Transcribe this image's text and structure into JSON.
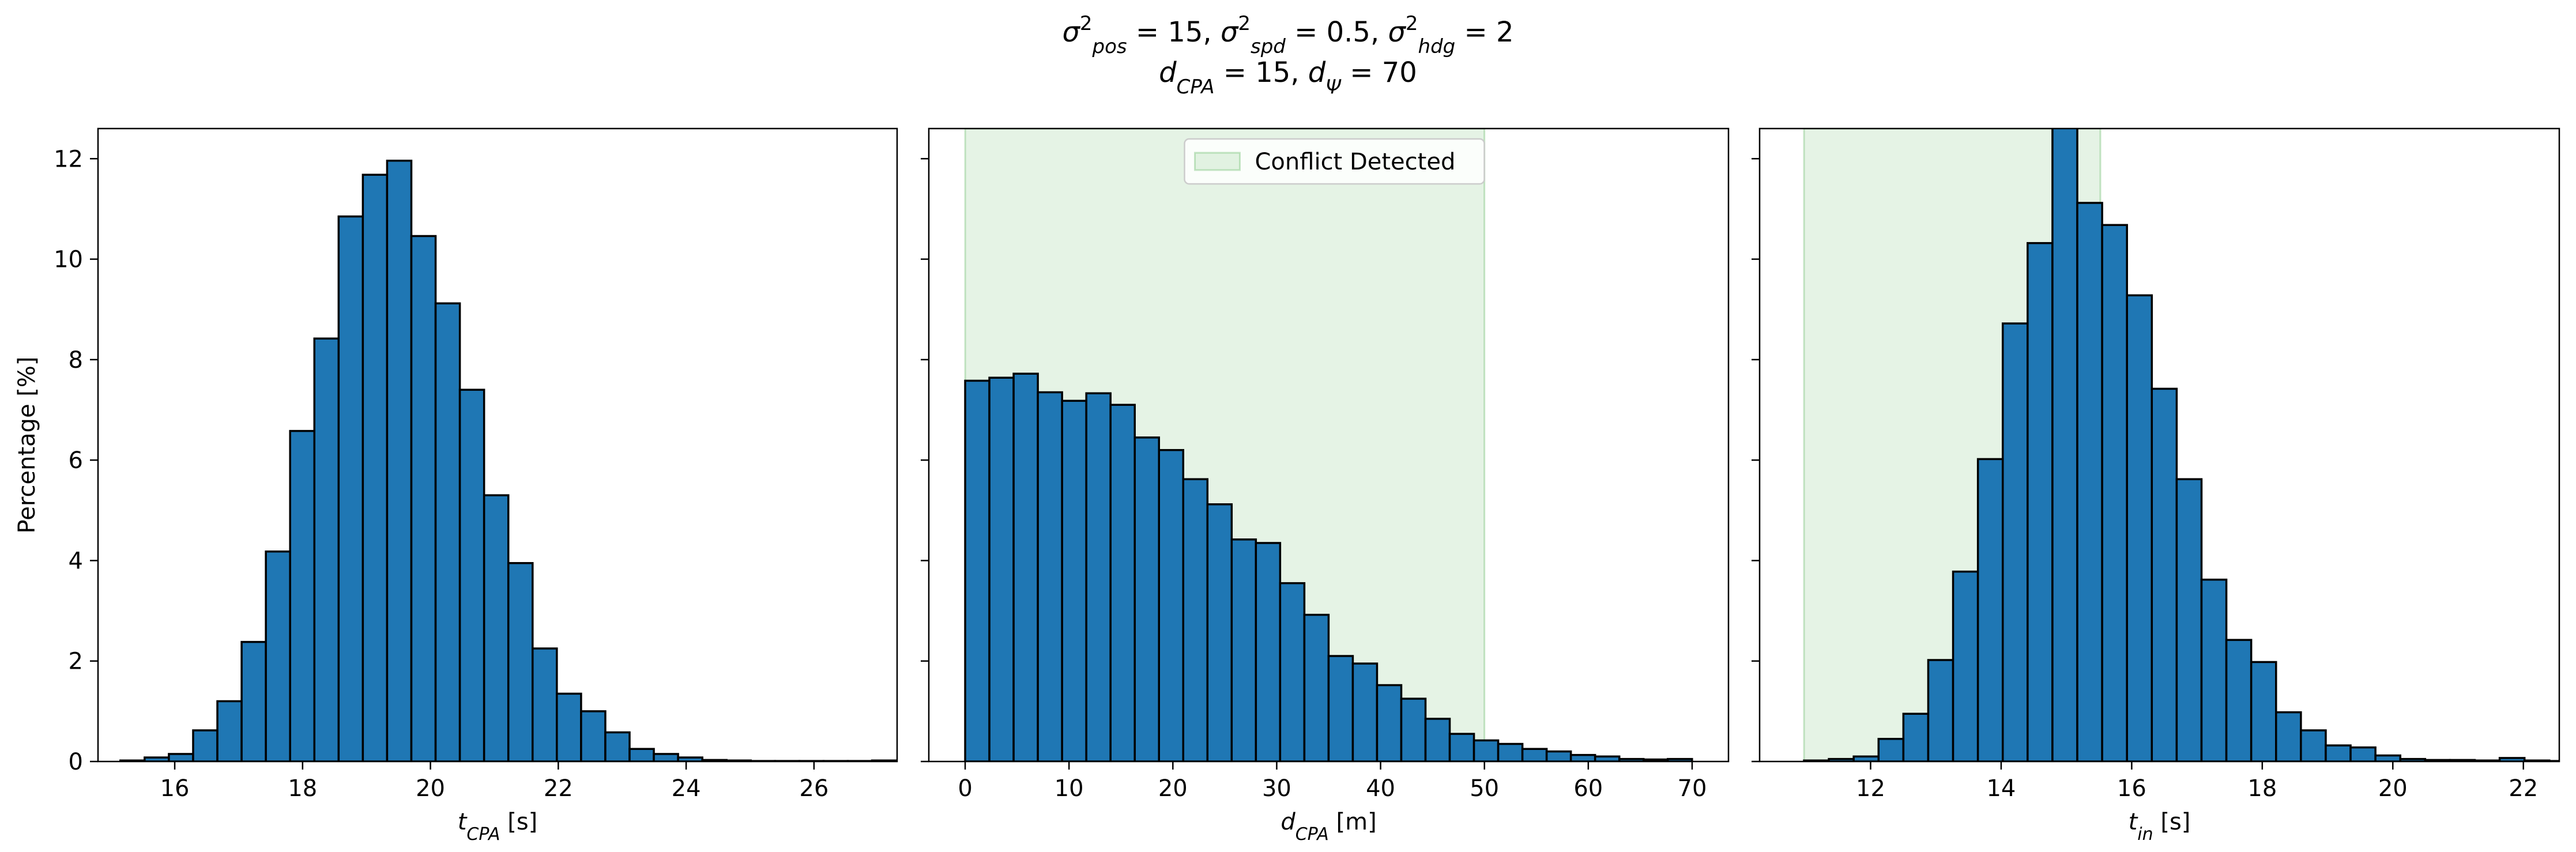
{
  "figure": {
    "title_line1": "σ²pos = 15, σ²spd = 0.5, σ²hdg = 2",
    "title_line2": "dCPA = 15, dΨ = 70"
  },
  "colors": {
    "bar_fill": "#1f77b4",
    "bar_edge": "#000000",
    "conflict_fill": "#2ca02c"
  },
  "chart_data": [
    {
      "type": "bar",
      "histogram": true,
      "xlabel": "t_CPA [s]",
      "ylabel": "Percentage [%]",
      "xlim": [
        14.8,
        27.3
      ],
      "ylim": [
        0,
        12.6
      ],
      "xticks": [
        16,
        18,
        20,
        22,
        24,
        26
      ],
      "yticks": [
        0,
        2,
        4,
        6,
        8,
        10,
        12
      ],
      "bin_start": 15.15,
      "bin_width": 0.3793,
      "values": [
        0.02,
        0.08,
        0.15,
        0.62,
        1.2,
        2.38,
        4.18,
        6.58,
        8.42,
        10.85,
        11.68,
        11.96,
        10.46,
        9.12,
        7.4,
        5.3,
        3.95,
        2.25,
        1.35,
        1.0,
        0.58,
        0.25,
        0.15,
        0.08,
        0.03,
        0.02,
        0.01,
        0.01,
        0.01,
        0.01,
        0.01,
        0.02
      ]
    },
    {
      "type": "bar",
      "histogram": true,
      "xlabel": "d_CPA [m]",
      "ylabel": "",
      "xlim": [
        -3.5,
        73.5
      ],
      "ylim": [
        0,
        12.6
      ],
      "xticks": [
        0,
        10,
        20,
        30,
        40,
        50,
        60,
        70
      ],
      "yticks": [
        0,
        2,
        4,
        6,
        8,
        10,
        12
      ],
      "bin_start": 0,
      "bin_width": 2.333,
      "conflict_region": [
        0,
        50
      ],
      "legend": [
        "Conflict Detected"
      ],
      "legend_position": "upper center",
      "values": [
        7.58,
        7.64,
        7.72,
        7.35,
        7.18,
        7.33,
        7.1,
        6.45,
        6.2,
        5.62,
        5.12,
        4.42,
        4.35,
        3.55,
        2.92,
        2.1,
        1.95,
        1.52,
        1.25,
        0.85,
        0.55,
        0.42,
        0.35,
        0.25,
        0.2,
        0.13,
        0.1,
        0.05,
        0.04,
        0.05
      ]
    },
    {
      "type": "bar",
      "histogram": true,
      "xlabel": "t_in [s]",
      "ylabel": "",
      "xlim": [
        10.3,
        22.55
      ],
      "ylim": [
        0,
        12.6
      ],
      "xticks": [
        12,
        14,
        16,
        18,
        20,
        22
      ],
      "yticks": [
        0,
        2,
        4,
        6,
        8,
        10,
        12
      ],
      "bin_start": 10.98,
      "bin_width": 0.3806,
      "conflict_region": [
        10.98,
        15.52
      ],
      "values": [
        0.02,
        0.05,
        0.1,
        0.45,
        0.95,
        2.02,
        3.78,
        6.02,
        8.72,
        10.32,
        12.85,
        11.12,
        10.68,
        9.28,
        7.42,
        5.62,
        3.62,
        2.42,
        1.98,
        0.98,
        0.62,
        0.32,
        0.28,
        0.12,
        0.05,
        0.03,
        0.03,
        0.02,
        0.07,
        0.02,
        0.01,
        0.02
      ]
    }
  ]
}
